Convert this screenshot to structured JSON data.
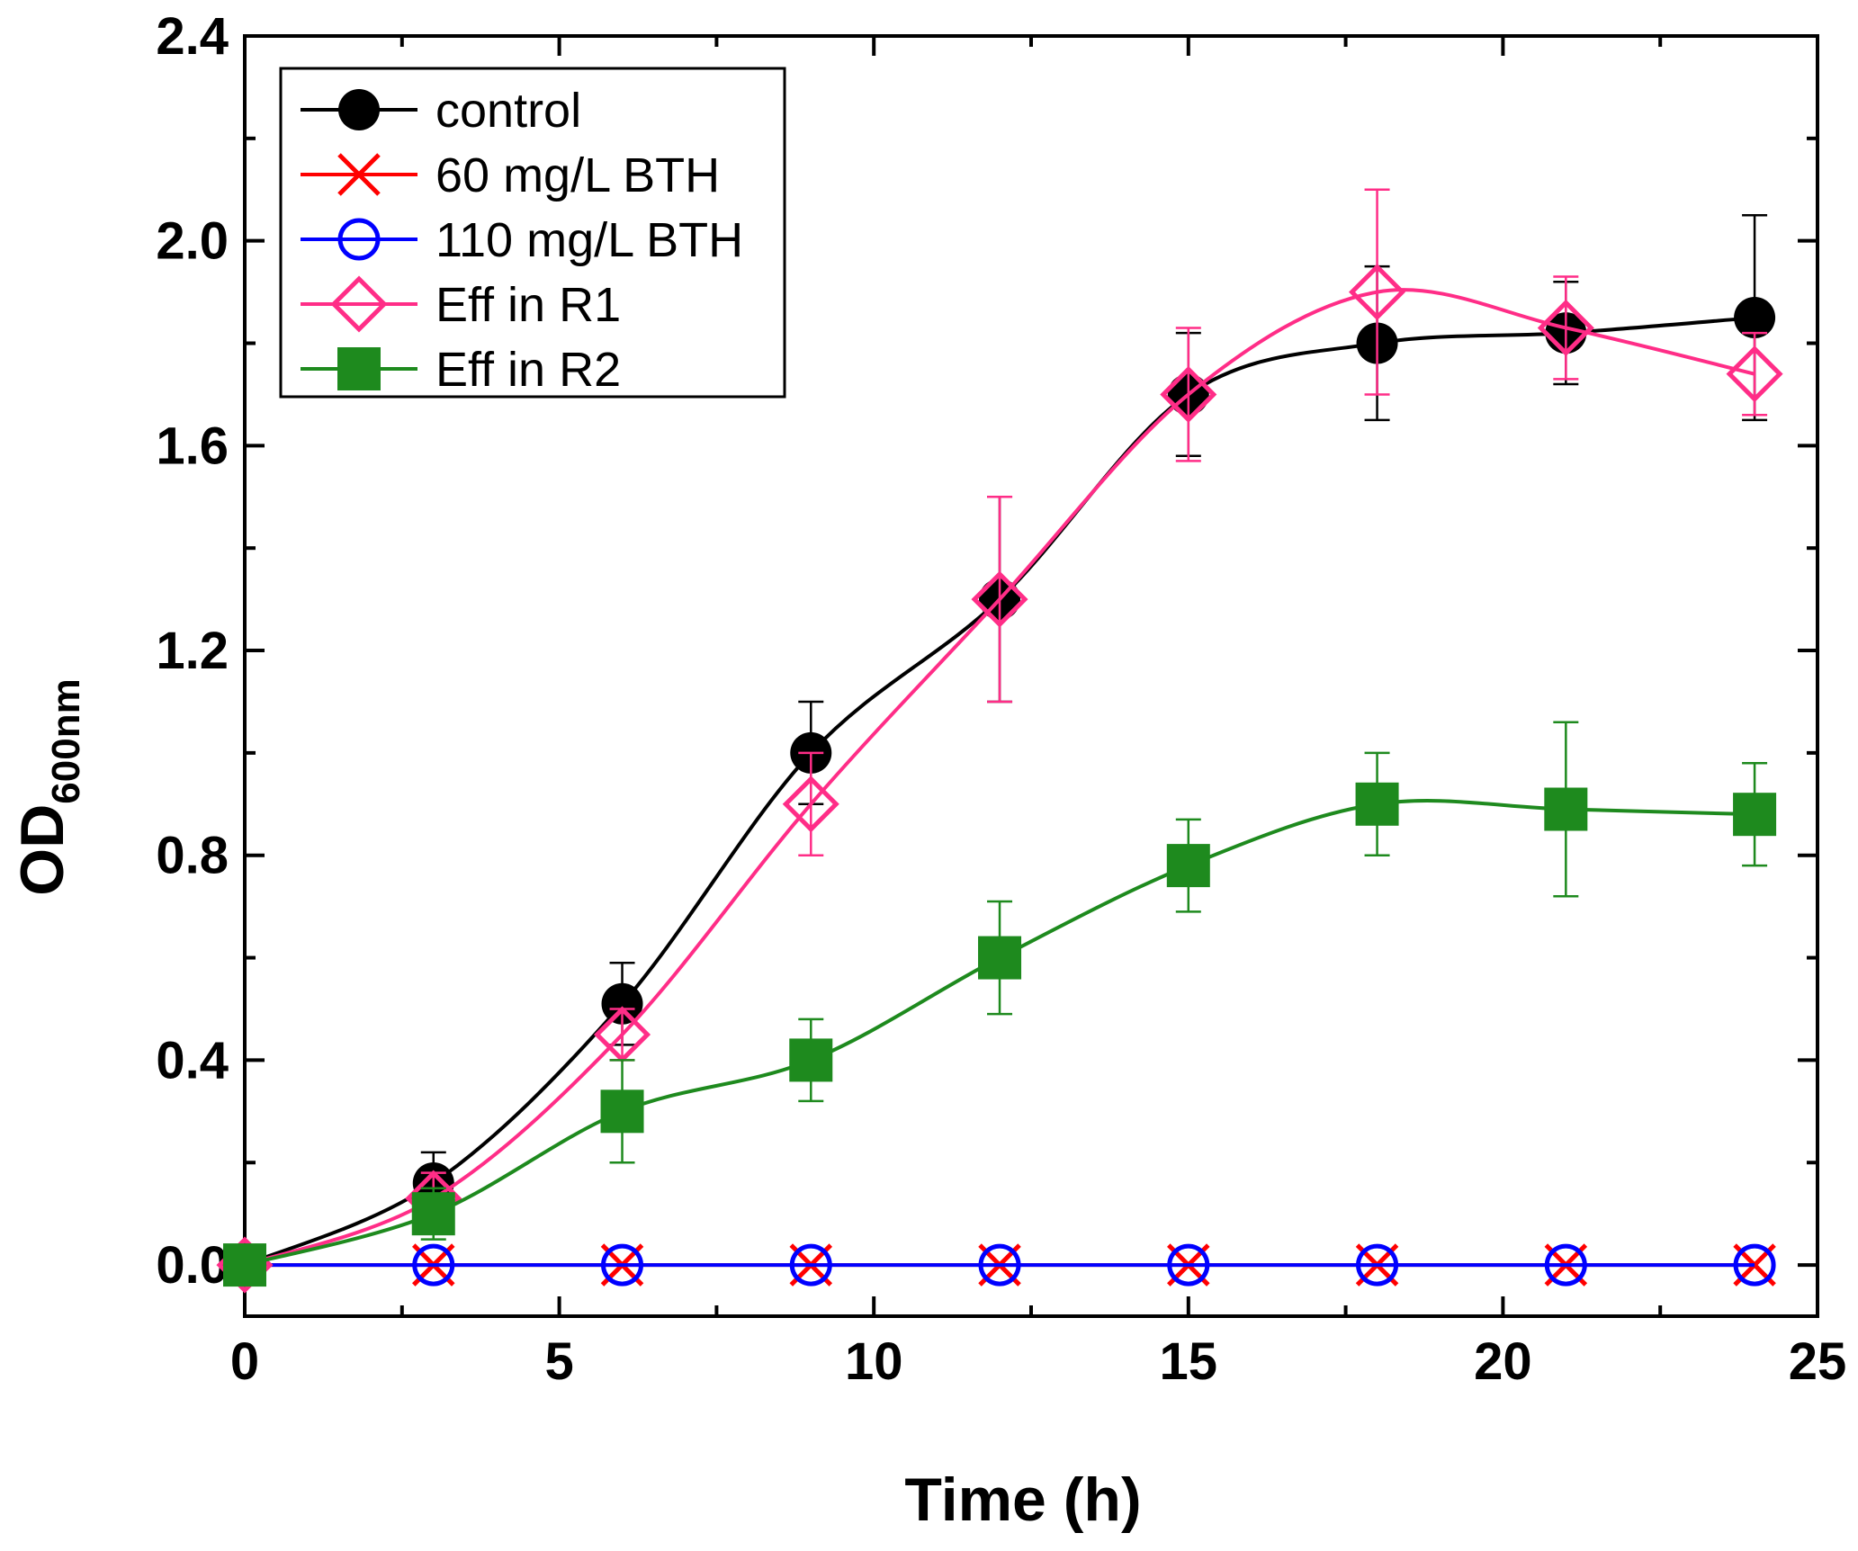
{
  "chart_data": {
    "type": "line",
    "title": "",
    "xlabel": "Time (h)",
    "ylabel": "OD",
    "ylabel_subscript": "600nm",
    "xlim": [
      0,
      25
    ],
    "ylim": [
      -0.1,
      2.4
    ],
    "xticks": [
      "0",
      "5",
      "10",
      "15",
      "20",
      "25"
    ],
    "yticks": [
      "0.0",
      "0.4",
      "0.8",
      "1.2",
      "1.6",
      "2.0",
      "2.4"
    ],
    "grid": false,
    "legend_position": "top-left",
    "x": [
      0,
      3,
      6,
      9,
      12,
      15,
      18,
      21,
      24
    ],
    "series": [
      {
        "name": "control",
        "color": "#000000",
        "marker": "filled-circle",
        "values": [
          0.0,
          0.16,
          0.51,
          1.0,
          1.3,
          1.7,
          1.8,
          1.82,
          1.85
        ],
        "errors": [
          0.0,
          0.06,
          0.08,
          0.1,
          0.2,
          0.12,
          0.15,
          0.1,
          0.2
        ]
      },
      {
        "name": "60 mg/L BTH",
        "color": "#ff0000",
        "marker": "cross",
        "values": [
          0,
          0,
          0,
          0,
          0,
          0,
          0,
          0,
          0
        ],
        "errors": [
          0,
          0,
          0,
          0,
          0,
          0,
          0,
          0,
          0
        ]
      },
      {
        "name": "110 mg/L BTH",
        "color": "#0000ff",
        "marker": "open-circle",
        "values": [
          0,
          0,
          0,
          0,
          0,
          0,
          0,
          0,
          0
        ],
        "errors": [
          0,
          0,
          0,
          0,
          0,
          0,
          0,
          0,
          0
        ]
      },
      {
        "name": "Eff in R1",
        "color": "#ff2d87",
        "marker": "open-diamond",
        "values": [
          0.0,
          0.13,
          0.45,
          0.9,
          1.3,
          1.7,
          1.9,
          1.83,
          1.74
        ],
        "errors": [
          0.0,
          0.05,
          0.05,
          0.1,
          0.2,
          0.13,
          0.2,
          0.1,
          0.08
        ]
      },
      {
        "name": "Eff in R2",
        "color": "#1e8a1e",
        "marker": "filled-square",
        "values": [
          0.0,
          0.1,
          0.3,
          0.4,
          0.6,
          0.78,
          0.9,
          0.89,
          0.88
        ],
        "errors": [
          0.0,
          0.05,
          0.1,
          0.08,
          0.11,
          0.09,
          0.1,
          0.17,
          0.1
        ]
      }
    ]
  }
}
